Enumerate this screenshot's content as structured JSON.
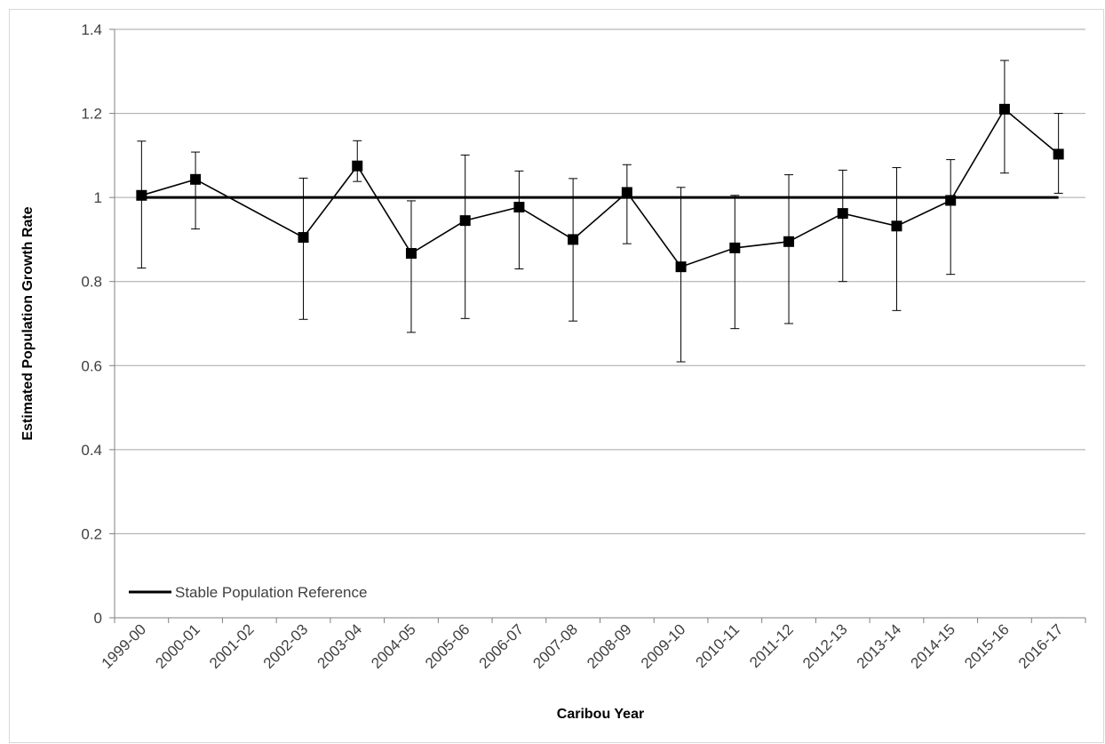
{
  "chart_data": {
    "type": "line",
    "title": "",
    "xlabel": "Caribou Year",
    "ylabel": "Estimated Population Growth Rate",
    "ylim": [
      0,
      1.4
    ],
    "yticks": [
      "0",
      "0.2",
      "0.4",
      "0.6",
      "0.8",
      "1",
      "1.2",
      "1.4"
    ],
    "grid": "horizontal",
    "legend_position": "bottom-left",
    "categories": [
      "1999-00",
      "2000-01",
      "2001-02",
      "2002-03",
      "2003-04",
      "2004-05",
      "2005-06",
      "2006-07",
      "2007-08",
      "2008-09",
      "2009-10",
      "2010-11",
      "2011-12",
      "2012-13",
      "2013-14",
      "2014-15",
      "2015-16",
      "2016-17"
    ],
    "series": [
      {
        "values": [
          1.005,
          1.043,
          null,
          0.905,
          1.075,
          0.867,
          0.945,
          0.977,
          0.9,
          1.012,
          0.835,
          0.88,
          0.895,
          0.962,
          0.932,
          0.993,
          1.21,
          1.103
        ],
        "lower": [
          0.832,
          0.925,
          null,
          0.71,
          1.038,
          0.679,
          0.712,
          0.83,
          0.706,
          0.89,
          0.609,
          0.688,
          0.7,
          0.8,
          0.731,
          0.817,
          1.058,
          1.01
        ],
        "upper": [
          1.134,
          1.108,
          null,
          1.046,
          1.135,
          0.992,
          1.101,
          1.063,
          1.045,
          1.078,
          1.024,
          1.005,
          1.054,
          1.065,
          1.071,
          1.09,
          1.326,
          1.2
        ],
        "color": "#000000",
        "marker": "square"
      },
      {
        "name": "Stable Population Reference",
        "type": "reference-line",
        "value": 1.0,
        "color": "#000000"
      }
    ]
  }
}
